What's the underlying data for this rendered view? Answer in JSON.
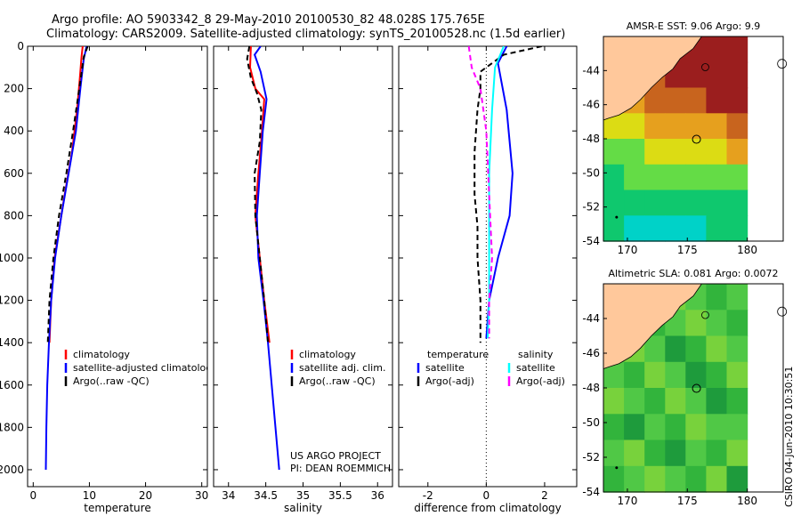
{
  "title_line1": "Argo profile: AO 5903342_8 29-May-2010 20100530_82 48.028S 175.765E",
  "title_line2": "Climatology: CARS2009. Satellite-adjusted climatology: synTS_20100528.nc (1.5d earlier)",
  "credit_project": "US ARGO PROJECT",
  "credit_pi": "PI: DEAN ROEMMICH",
  "stamp": "CSIRO 04-Jun-2010 10:30:51",
  "colors": {
    "red": "#ff0000",
    "blue": "#0000ff",
    "black": "#000000",
    "cyan": "#00ffff",
    "magenta": "#ff00ff"
  },
  "chart_data": [
    {
      "type": "line",
      "xlabel": "temperature",
      "xlim": [
        -1,
        31
      ],
      "ylim": [
        2080,
        0
      ],
      "xticks": [
        0,
        10,
        20,
        30
      ],
      "xtick_labels": [
        "0",
        "10",
        "20",
        "30"
      ],
      "yticks": [
        0,
        200,
        400,
        600,
        800,
        1000,
        1200,
        1400,
        1600,
        1800,
        2000
      ],
      "ytick_labels": [
        "0",
        "200",
        "400",
        "600",
        "800",
        "1000",
        "1200",
        "1400",
        "1600",
        "1800",
        "2000"
      ],
      "legend": [
        "climatology",
        "satellite-adjusted climatology",
        "Argo(..raw -QC)"
      ],
      "series": [
        {
          "name": "climatology",
          "color": "red",
          "dash": false,
          "points": [
            [
              8.8,
              0
            ],
            [
              8.6,
              50
            ],
            [
              8.3,
              150
            ],
            [
              7.8,
              300
            ],
            [
              6.9,
              500
            ],
            [
              5.6,
              700
            ],
            [
              4.7,
              850
            ],
            [
              3.8,
              1000
            ],
            [
              3.2,
              1200
            ],
            [
              2.9,
              1400
            ]
          ]
        },
        {
          "name": "satellite-adjusted climatology",
          "color": "blue",
          "dash": false,
          "points": [
            [
              9.5,
              0
            ],
            [
              9.0,
              60
            ],
            [
              8.4,
              200
            ],
            [
              7.6,
              400
            ],
            [
              6.3,
              600
            ],
            [
              5.0,
              800
            ],
            [
              3.9,
              1000
            ],
            [
              3.2,
              1200
            ],
            [
              2.8,
              1400
            ],
            [
              2.5,
              1600
            ],
            [
              2.35,
              1800
            ],
            [
              2.25,
              2000
            ]
          ]
        },
        {
          "name": "Argo(..raw -QC)",
          "color": "black",
          "dash": true,
          "points": [
            [
              9.7,
              0
            ],
            [
              9.0,
              50
            ],
            [
              8.2,
              200
            ],
            [
              7.1,
              400
            ],
            [
              5.9,
              600
            ],
            [
              4.6,
              800
            ],
            [
              3.6,
              1000
            ],
            [
              2.9,
              1200
            ],
            [
              2.6,
              1400
            ]
          ]
        }
      ]
    },
    {
      "type": "line",
      "xlabel": "salinity",
      "xlim": [
        33.8,
        36.2
      ],
      "ylim": [
        2080,
        0
      ],
      "xticks": [
        34,
        34.5,
        35,
        35.5,
        36
      ],
      "xtick_labels": [
        "34",
        "34.5",
        "35",
        "35.5",
        "36"
      ],
      "legend": [
        "climatology",
        "satellite adj. clim.",
        "Argo(..raw -QC)"
      ],
      "series": [
        {
          "name": "climatology",
          "color": "red",
          "dash": false,
          "points": [
            [
              34.3,
              0
            ],
            [
              34.29,
              100
            ],
            [
              34.36,
              200
            ],
            [
              34.48,
              250
            ],
            [
              34.45,
              400
            ],
            [
              34.4,
              600
            ],
            [
              34.36,
              800
            ],
            [
              34.42,
              1000
            ],
            [
              34.48,
              1200
            ],
            [
              34.55,
              1400
            ]
          ]
        },
        {
          "name": "satellite adj. clim.",
          "color": "blue",
          "dash": false,
          "points": [
            [
              34.43,
              0
            ],
            [
              34.35,
              40
            ],
            [
              34.43,
              120
            ],
            [
              34.51,
              250
            ],
            [
              34.46,
              400
            ],
            [
              34.42,
              600
            ],
            [
              34.38,
              800
            ],
            [
              34.4,
              1000
            ],
            [
              34.47,
              1200
            ],
            [
              34.53,
              1400
            ],
            [
              34.58,
              1600
            ],
            [
              34.63,
              1800
            ],
            [
              34.68,
              2000
            ]
          ]
        },
        {
          "name": "Argo(..raw -QC)",
          "color": "black",
          "dash": true,
          "points": [
            [
              34.28,
              0
            ],
            [
              34.25,
              60
            ],
            [
              34.3,
              150
            ],
            [
              34.38,
              220
            ],
            [
              34.44,
              300
            ],
            [
              34.42,
              450
            ],
            [
              34.35,
              600
            ],
            [
              34.36,
              800
            ],
            [
              34.42,
              1000
            ],
            [
              34.48,
              1200
            ],
            [
              34.53,
              1400
            ]
          ]
        }
      ]
    },
    {
      "type": "line",
      "xlabel": "difference from climatology",
      "xlim": [
        -3,
        3.1
      ],
      "ylim": [
        2080,
        0
      ],
      "xticks": [
        -2,
        0,
        2
      ],
      "xtick_labels": [
        "-2",
        "0",
        "2"
      ],
      "legend": [
        "temperature",
        "satellite",
        "Argo(-adj)",
        "salinity",
        "satellite",
        "Argo(-adj)"
      ],
      "series": [
        {
          "name": "temperature satellite",
          "color": "blue",
          "dash": false,
          "points": [
            [
              0.7,
              0
            ],
            [
              0.4,
              80
            ],
            [
              0.7,
              300
            ],
            [
              0.9,
              600
            ],
            [
              0.8,
              800
            ],
            [
              0.4,
              1000
            ],
            [
              0.1,
              1200
            ],
            [
              0.0,
              1380
            ]
          ]
        },
        {
          "name": "temperature Argo(-adj)",
          "color": "black",
          "dash": true,
          "points": [
            [
              1.9,
              0
            ],
            [
              0.6,
              40
            ],
            [
              -0.2,
              120
            ],
            [
              -0.2,
              200
            ],
            [
              -0.3,
              300
            ],
            [
              -0.4,
              500
            ],
            [
              -0.4,
              700
            ],
            [
              -0.3,
              850
            ],
            [
              -0.3,
              1000
            ],
            [
              -0.2,
              1200
            ],
            [
              -0.2,
              1400
            ]
          ]
        },
        {
          "name": "salinity satellite",
          "color": "cyan",
          "dash": false,
          "points": [
            [
              0.6,
              0
            ],
            [
              0.3,
              100
            ],
            [
              0.2,
              300
            ],
            [
              0.1,
              600
            ],
            [
              0.1,
              900
            ],
            [
              0.1,
              1200
            ],
            [
              0.05,
              1380
            ]
          ]
        },
        {
          "name": "salinity Argo(-adj)",
          "color": "magenta",
          "dash": true,
          "points": [
            [
              -0.6,
              0
            ],
            [
              -0.5,
              100
            ],
            [
              -0.2,
              200
            ],
            [
              0.0,
              400
            ],
            [
              0.1,
              700
            ],
            [
              0.2,
              1000
            ],
            [
              0.1,
              1200
            ],
            [
              0.1,
              1380
            ]
          ]
        }
      ]
    },
    {
      "type": "heatmap",
      "title": "AMSR-E SST: 9.06 Argo: 9.9",
      "xlim": [
        168,
        183
      ],
      "ylim": [
        -54,
        -42
      ],
      "xticks": [
        170,
        175,
        180
      ],
      "xtick_labels": [
        "170",
        "175",
        "180"
      ],
      "yticks": [
        -44,
        -46,
        -48,
        -50,
        -52,
        -54
      ],
      "ytick_labels": [
        "-44",
        "-46",
        "-48",
        "-50",
        "-52",
        "-54"
      ],
      "argo_position": [
        175.765,
        -48.028
      ],
      "data_east_limit": 180,
      "palette": [
        "#00d2c8",
        "#0fc86e",
        "#64dc46",
        "#dcdc14",
        "#e6a01e",
        "#c8641e",
        "#9b1e1e"
      ],
      "grid": [
        [
          6,
          6,
          6,
          6,
          6,
          6,
          6
        ],
        [
          6,
          5,
          5,
          6,
          6,
          6,
          6
        ],
        [
          4,
          4,
          5,
          5,
          5,
          6,
          6
        ],
        [
          3,
          3,
          4,
          4,
          4,
          4,
          5
        ],
        [
          2,
          2,
          3,
          3,
          3,
          3,
          4
        ],
        [
          1,
          2,
          2,
          2,
          2,
          2,
          2
        ],
        [
          1,
          1,
          1,
          1,
          1,
          1,
          1
        ],
        [
          1,
          0,
          0,
          0,
          0,
          1,
          1
        ]
      ]
    },
    {
      "type": "heatmap",
      "title": "Altimetric SLA: 0.081 Argo: 0.0072",
      "xlim": [
        168,
        183
      ],
      "ylim": [
        -54,
        -42
      ],
      "xticks": [
        170,
        175,
        180
      ],
      "xtick_labels": [
        "170",
        "175",
        "180"
      ],
      "yticks": [
        -44,
        -46,
        -48,
        -50,
        -52,
        -54
      ],
      "ytick_labels": [
        "-44",
        "-46",
        "-48",
        "-50",
        "-52",
        "-54"
      ],
      "argo_position": [
        175.765,
        -48.028
      ],
      "data_east_limit": 180,
      "palette": [
        "#1e9b3c",
        "#32b43c",
        "#50c846",
        "#78d23c"
      ],
      "grid": [
        [
          2,
          1,
          2,
          3,
          2,
          1,
          2
        ],
        [
          3,
          2,
          1,
          2,
          3,
          2,
          1
        ],
        [
          1,
          3,
          2,
          0,
          1,
          3,
          2
        ],
        [
          2,
          1,
          3,
          2,
          0,
          1,
          3
        ],
        [
          3,
          2,
          1,
          3,
          2,
          0,
          1
        ],
        [
          1,
          0,
          2,
          1,
          3,
          2,
          2
        ],
        [
          2,
          3,
          1,
          0,
          2,
          1,
          3
        ],
        [
          1,
          2,
          3,
          2,
          1,
          3,
          0
        ]
      ]
    }
  ]
}
